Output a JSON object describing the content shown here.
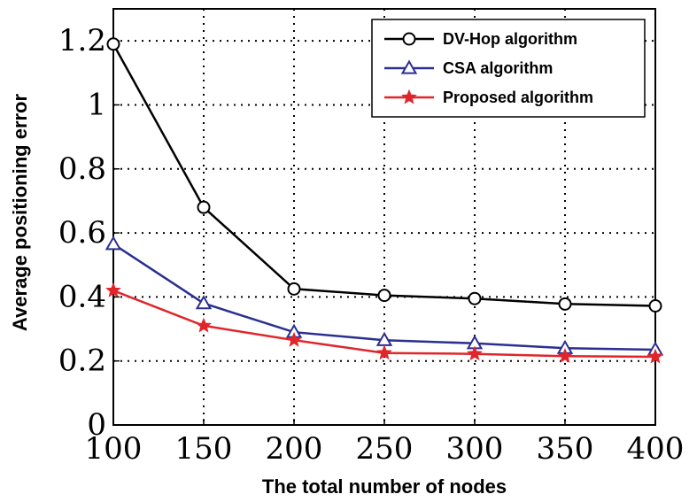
{
  "chart_data": {
    "type": "line",
    "title": "",
    "xlabel": "The total number of nodes",
    "ylabel": "Average positioning error",
    "x": [
      100,
      150,
      200,
      250,
      300,
      350,
      400
    ],
    "xlim": [
      100,
      400
    ],
    "ylim": [
      0,
      1.3
    ],
    "xticks": [
      100,
      150,
      200,
      250,
      300,
      350,
      400
    ],
    "yticks": [
      0,
      0.2,
      0.4,
      0.6,
      0.8,
      1,
      1.2
    ],
    "xtick_labels": [
      "100",
      "150",
      "200",
      "250",
      "300",
      "350",
      "400"
    ],
    "ytick_labels": [
      "0",
      "0.2",
      "0.4",
      "0.6",
      "0.8",
      "1",
      "1.2"
    ],
    "grid": true,
    "legend_position": "top-right",
    "series": [
      {
        "name": "DV-Hop algorithm",
        "values": [
          1.19,
          0.68,
          0.425,
          0.405,
          0.395,
          0.378,
          0.372
        ],
        "color": "#000000",
        "marker": "circle"
      },
      {
        "name": "CSA algorithm",
        "values": [
          0.565,
          0.38,
          0.29,
          0.265,
          0.255,
          0.24,
          0.235
        ],
        "color": "#2b2f8f",
        "marker": "triangle"
      },
      {
        "name": "Proposed algorithm",
        "values": [
          0.42,
          0.31,
          0.265,
          0.225,
          0.222,
          0.215,
          0.213
        ],
        "color": "#e0262b",
        "marker": "star"
      }
    ]
  }
}
